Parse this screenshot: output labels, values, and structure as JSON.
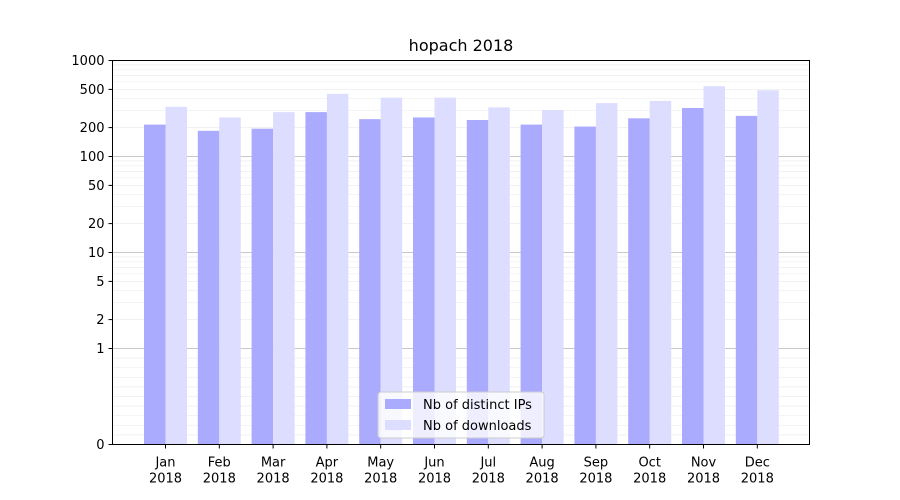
{
  "chart_data": {
    "type": "bar",
    "title": "hopach 2018",
    "xlabel": "",
    "ylabel": "",
    "y_scale": "symlog",
    "ylim": [
      0,
      1000
    ],
    "y_ticks": [
      0,
      1,
      2,
      5,
      10,
      20,
      50,
      100,
      200,
      500,
      1000
    ],
    "grid": true,
    "legend_position": "bottom-center",
    "categories": [
      [
        "Jan",
        "2018"
      ],
      [
        "Feb",
        "2018"
      ],
      [
        "Mar",
        "2018"
      ],
      [
        "Apr",
        "2018"
      ],
      [
        "May",
        "2018"
      ],
      [
        "Jun",
        "2018"
      ],
      [
        "Jul",
        "2018"
      ],
      [
        "Aug",
        "2018"
      ],
      [
        "Sep",
        "2018"
      ],
      [
        "Oct",
        "2018"
      ],
      [
        "Nov",
        "2018"
      ],
      [
        "Dec",
        "2018"
      ]
    ],
    "series": [
      {
        "name": "Nb of distinct IPs",
        "color": "#aaaaff",
        "values": [
          215,
          185,
          195,
          290,
          245,
          255,
          240,
          215,
          205,
          250,
          320,
          265
        ]
      },
      {
        "name": "Nb of downloads",
        "color": "#ddddff",
        "values": [
          330,
          255,
          290,
          450,
          410,
          410,
          325,
          305,
          360,
          380,
          540,
          490
        ]
      }
    ]
  }
}
